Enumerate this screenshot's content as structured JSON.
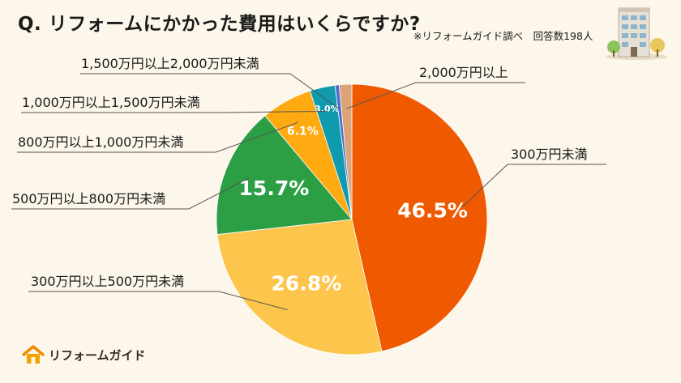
{
  "header": {
    "title": "Q. リフォームにかかった費用はいくらですか?",
    "note": "※リフォームガイド調べ　回答数198人"
  },
  "logo": {
    "text": "リフォームガイド"
  },
  "chart_data": {
    "type": "pie",
    "title": "Q. リフォームにかかった費用はいくらですか?",
    "start_angle_deg": 0,
    "direction": "clockwise",
    "slices": [
      {
        "label": "300万円未満",
        "value": 46.5,
        "display": "46.5%",
        "color": "#ef5a00"
      },
      {
        "label": "300万円以上500万円未満",
        "value": 26.8,
        "display": "26.8%",
        "color": "#fec54c"
      },
      {
        "label": "500万円以上800万円未満",
        "value": 15.7,
        "display": "15.7%",
        "color": "#2c9f45"
      },
      {
        "label": "800万円以上1,000万円未満",
        "value": 6.1,
        "display": "6.1%",
        "color": "#ffaa10"
      },
      {
        "label": "1,000万円以上1,500万円未満",
        "value": 3.0,
        "display": "3.0%",
        "color": "#0f9aad"
      },
      {
        "label": "1,500万円以上2,000万円未満",
        "value": 0.5,
        "display": "",
        "color": "#4f6fd0"
      },
      {
        "label": "2,000万円以上",
        "value": 1.5,
        "display": "",
        "color": "#dca376"
      }
    ],
    "legend": "callout-labels"
  },
  "colors": {
    "background": "#fdf6ea",
    "leader_line": "#555555",
    "logo_orange": "#f08a00"
  }
}
